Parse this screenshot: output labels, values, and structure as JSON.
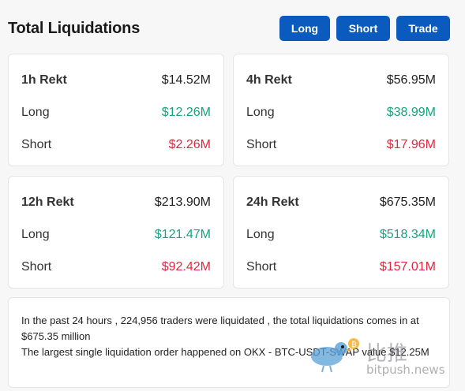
{
  "header": {
    "title": "Total Liquidations",
    "buttons": {
      "long": "Long",
      "short": "Short",
      "trade": "Trade"
    }
  },
  "cards": [
    {
      "period": "1h Rekt",
      "total": "$14.52M",
      "long_label": "Long",
      "long": "$12.26M",
      "short_label": "Short",
      "short": "$2.26M"
    },
    {
      "period": "4h Rekt",
      "total": "$56.95M",
      "long_label": "Long",
      "long": "$38.99M",
      "short_label": "Short",
      "short": "$17.96M"
    },
    {
      "period": "12h Rekt",
      "total": "$213.90M",
      "long_label": "Long",
      "long": "$121.47M",
      "short_label": "Short",
      "short": "$92.42M"
    },
    {
      "period": "24h Rekt",
      "total": "$675.35M",
      "long_label": "Long",
      "long": "$518.34M",
      "short_label": "Short",
      "short": "$157.01M"
    }
  ],
  "summary": {
    "line1": "In the past 24 hours , 224,956 traders were liquidated , the total liquidations comes in at $675.35 million",
    "line2": "The largest single liquidation order happened on OKX - BTC-USDT-SWAP value $12.25M"
  },
  "watermark": {
    "brand_cn": "比推",
    "url": "bitpush.news",
    "icon": "bird-logo-icon"
  },
  "colors": {
    "accent": "#0b5bbf",
    "long": "#16a37f",
    "short": "#e0283f"
  }
}
